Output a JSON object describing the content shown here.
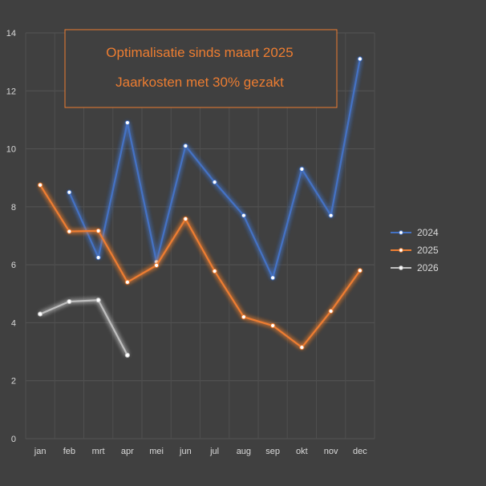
{
  "chart_data": {
    "type": "line",
    "categories": [
      "jan",
      "feb",
      "mrt",
      "apr",
      "mei",
      "jun",
      "jul",
      "aug",
      "sep",
      "okt",
      "nov",
      "dec"
    ],
    "series": [
      {
        "name": "2024",
        "color": "#4472c4",
        "values": [
          null,
          8.5,
          6.25,
          10.9,
          6.1,
          10.1,
          8.85,
          7.7,
          5.55,
          9.3,
          7.7,
          13.1
        ]
      },
      {
        "name": "2025",
        "color": "#ed7d31",
        "values": [
          8.75,
          7.15,
          7.17,
          5.4,
          5.98,
          7.58,
          5.78,
          4.2,
          3.9,
          3.15,
          4.4,
          5.8
        ]
      },
      {
        "name": "2026",
        "color": "#bfbfbf",
        "values": [
          4.3,
          4.73,
          4.78,
          2.88,
          null,
          null,
          null,
          null,
          null,
          null,
          null,
          null
        ]
      }
    ],
    "yticks": [
      "0",
      "2",
      "4",
      "6",
      "8",
      "10",
      "12",
      "14"
    ],
    "ylim": [
      0,
      14
    ],
    "grid": true,
    "legend_position": "right",
    "annotation": {
      "line1": "Optimalisatie sinds maart 2025",
      "line2": "Jaarkosten met 30% gezakt"
    }
  }
}
